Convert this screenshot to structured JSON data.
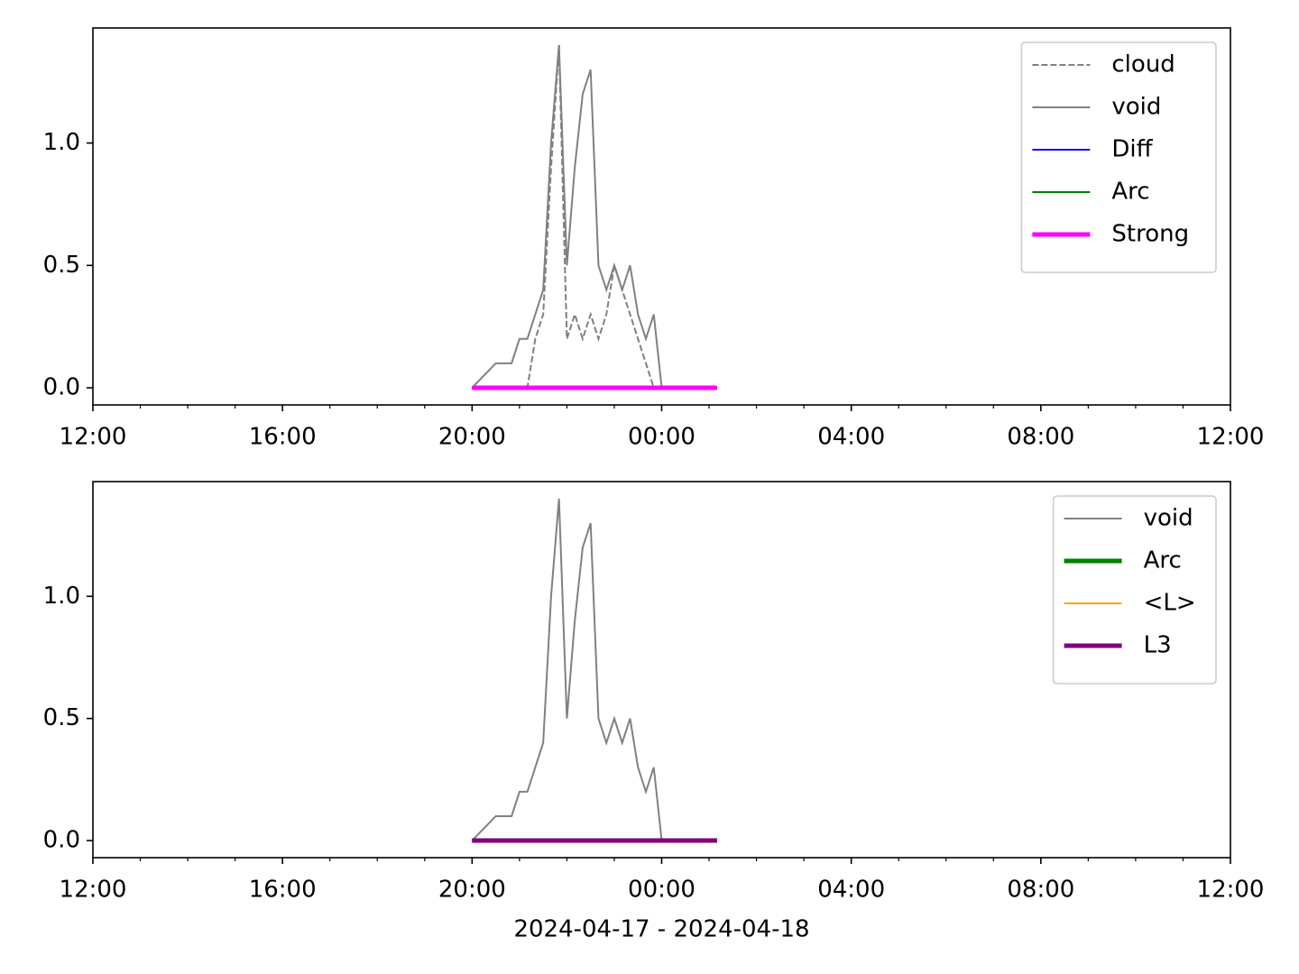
{
  "chart_data": [
    {
      "type": "line",
      "xlim": [
        "2024-04-17T12:00",
        "2024-04-18T12:00"
      ],
      "xticks": [
        {
          "value": "2024-04-17T12:00",
          "label": "12:00"
        },
        {
          "value": "2024-04-17T16:00",
          "label": "16:00"
        },
        {
          "value": "2024-04-17T20:00",
          "label": "20:00"
        },
        {
          "value": "2024-04-18T00:00",
          "label": "00:00"
        },
        {
          "value": "2024-04-18T04:00",
          "label": "04:00"
        },
        {
          "value": "2024-04-18T08:00",
          "label": "08:00"
        },
        {
          "value": "2024-04-18T12:00",
          "label": "12:00"
        }
      ],
      "xminorticks": [
        "2024-04-17T13:00",
        "2024-04-17T14:00",
        "2024-04-17T15:00",
        "2024-04-17T17:00",
        "2024-04-17T18:00",
        "2024-04-17T19:00",
        "2024-04-17T21:00",
        "2024-04-17T22:00",
        "2024-04-17T23:00",
        "2024-04-18T01:00",
        "2024-04-18T02:00",
        "2024-04-18T03:00",
        "2024-04-18T05:00",
        "2024-04-18T06:00",
        "2024-04-18T07:00",
        "2024-04-18T09:00",
        "2024-04-18T10:00",
        "2024-04-18T11:00"
      ],
      "ylim": [
        -0.07,
        1.47
      ],
      "yticks": [
        {
          "value": 0,
          "label": "0.0"
        },
        {
          "value": 0.5,
          "label": "0.5"
        },
        {
          "value": 1,
          "label": "1.0"
        }
      ],
      "legend": "upper right",
      "series": [
        {
          "name": "cloud",
          "color": "#808080",
          "linestyle": "dashed",
          "linewidth": 2,
          "x": [
            "2024-04-17T20:00",
            "2024-04-17T21:10",
            "2024-04-17T21:20",
            "2024-04-17T21:30",
            "2024-04-17T21:40",
            "2024-04-17T21:50",
            "2024-04-17T22:00",
            "2024-04-17T22:10",
            "2024-04-17T22:20",
            "2024-04-17T22:30",
            "2024-04-17T22:40",
            "2024-04-17T22:50",
            "2024-04-17T23:00",
            "2024-04-17T23:10",
            "2024-04-17T23:20",
            "2024-04-17T23:30",
            "2024-04-17T23:40",
            "2024-04-17T23:50",
            "2024-04-18T00:00"
          ],
          "values": [
            0,
            0,
            0.2,
            0.3,
            0.9,
            1.4,
            0.2,
            0.3,
            0.2,
            0.3,
            0.2,
            0.3,
            0.5,
            0.4,
            0.3,
            0.2,
            0.1,
            0,
            0
          ]
        },
        {
          "name": "void",
          "color": "#808080",
          "linestyle": "solid",
          "linewidth": 2,
          "x": [
            "2024-04-17T20:00",
            "2024-04-17T20:30",
            "2024-04-17T20:40",
            "2024-04-17T20:50",
            "2024-04-17T21:00",
            "2024-04-17T21:10",
            "2024-04-17T21:20",
            "2024-04-17T21:30",
            "2024-04-17T21:40",
            "2024-04-17T21:50",
            "2024-04-17T22:00",
            "2024-04-17T22:10",
            "2024-04-17T22:20",
            "2024-04-17T22:30",
            "2024-04-17T22:40",
            "2024-04-17T22:50",
            "2024-04-17T23:00",
            "2024-04-17T23:10",
            "2024-04-17T23:20",
            "2024-04-17T23:30",
            "2024-04-17T23:40",
            "2024-04-17T23:50",
            "2024-04-18T00:00"
          ],
          "values": [
            0,
            0.1,
            0.1,
            0.1,
            0.2,
            0.2,
            0.3,
            0.4,
            1.0,
            1.4,
            0.5,
            0.9,
            1.2,
            1.3,
            0.5,
            0.4,
            0.5,
            0.4,
            0.5,
            0.3,
            0.2,
            0.3,
            0
          ]
        },
        {
          "name": "Diff",
          "color": "#0000ff",
          "linestyle": "solid",
          "linewidth": 2,
          "x": [
            "2024-04-17T20:00",
            "2024-04-18T01:10"
          ],
          "values": [
            0,
            0
          ]
        },
        {
          "name": "Arc",
          "color": "#008000",
          "linestyle": "solid",
          "linewidth": 2,
          "x": [
            "2024-04-17T20:00",
            "2024-04-18T01:10"
          ],
          "values": [
            0,
            0
          ]
        },
        {
          "name": "Strong",
          "color": "#ff00ff",
          "linestyle": "solid",
          "linewidth": 5,
          "x": [
            "2024-04-17T20:00",
            "2024-04-18T01:10"
          ],
          "values": [
            0,
            0
          ]
        }
      ]
    },
    {
      "type": "line",
      "x_label": "2024-04-17 - 2024-04-18",
      "xlim": [
        "2024-04-17T12:00",
        "2024-04-18T12:00"
      ],
      "xticks": [
        {
          "value": "2024-04-17T12:00",
          "label": "12:00"
        },
        {
          "value": "2024-04-17T16:00",
          "label": "16:00"
        },
        {
          "value": "2024-04-17T20:00",
          "label": "20:00"
        },
        {
          "value": "2024-04-18T00:00",
          "label": "00:00"
        },
        {
          "value": "2024-04-18T04:00",
          "label": "04:00"
        },
        {
          "value": "2024-04-18T08:00",
          "label": "08:00"
        },
        {
          "value": "2024-04-18T12:00",
          "label": "12:00"
        }
      ],
      "xminorticks": [
        "2024-04-17T13:00",
        "2024-04-17T14:00",
        "2024-04-17T15:00",
        "2024-04-17T17:00",
        "2024-04-17T18:00",
        "2024-04-17T19:00",
        "2024-04-17T21:00",
        "2024-04-17T22:00",
        "2024-04-17T23:00",
        "2024-04-18T01:00",
        "2024-04-18T02:00",
        "2024-04-18T03:00",
        "2024-04-18T05:00",
        "2024-04-18T06:00",
        "2024-04-18T07:00",
        "2024-04-18T09:00",
        "2024-04-18T10:00",
        "2024-04-18T11:00"
      ],
      "ylim": [
        -0.07,
        1.47
      ],
      "yticks": [
        {
          "value": 0,
          "label": "0.0"
        },
        {
          "value": 0.5,
          "label": "0.5"
        },
        {
          "value": 1,
          "label": "1.0"
        }
      ],
      "legend": "upper right",
      "series": [
        {
          "name": "void",
          "color": "#808080",
          "linestyle": "solid",
          "linewidth": 2,
          "x": [
            "2024-04-17T20:00",
            "2024-04-17T20:30",
            "2024-04-17T20:40",
            "2024-04-17T20:50",
            "2024-04-17T21:00",
            "2024-04-17T21:10",
            "2024-04-17T21:20",
            "2024-04-17T21:30",
            "2024-04-17T21:40",
            "2024-04-17T21:50",
            "2024-04-17T22:00",
            "2024-04-17T22:10",
            "2024-04-17T22:20",
            "2024-04-17T22:30",
            "2024-04-17T22:40",
            "2024-04-17T22:50",
            "2024-04-17T23:00",
            "2024-04-17T23:10",
            "2024-04-17T23:20",
            "2024-04-17T23:30",
            "2024-04-17T23:40",
            "2024-04-17T23:50",
            "2024-04-18T00:00"
          ],
          "values": [
            0,
            0.1,
            0.1,
            0.1,
            0.2,
            0.2,
            0.3,
            0.4,
            1.0,
            1.4,
            0.5,
            0.9,
            1.2,
            1.3,
            0.5,
            0.4,
            0.5,
            0.4,
            0.5,
            0.3,
            0.2,
            0.3,
            0
          ]
        },
        {
          "name": "Arc",
          "color": "#008000",
          "linestyle": "solid",
          "linewidth": 5,
          "x": [
            "2024-04-17T20:00",
            "2024-04-18T01:10"
          ],
          "values": [
            0,
            0
          ]
        },
        {
          "name": "<L>",
          "color": "#ffa500",
          "linestyle": "solid",
          "linewidth": 2,
          "x": [
            "2024-04-17T20:00",
            "2024-04-18T01:10"
          ],
          "values": [
            0,
            0
          ]
        },
        {
          "name": "L3",
          "color": "#800080",
          "linestyle": "solid",
          "linewidth": 5,
          "x": [
            "2024-04-17T20:00",
            "2024-04-18T01:10"
          ],
          "values": [
            0,
            0
          ]
        }
      ]
    }
  ]
}
